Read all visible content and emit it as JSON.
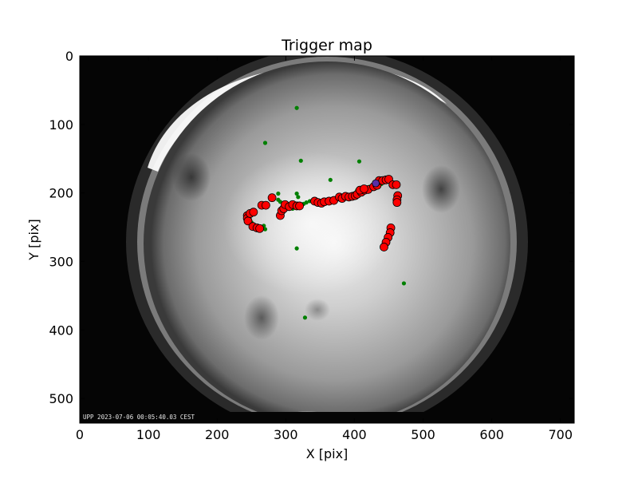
{
  "chart_data": {
    "type": "scatter",
    "title": "Trigger map",
    "xlabel": "X [pix]",
    "ylabel": "Y [pix]",
    "xlim": [
      0,
      720
    ],
    "ylim": [
      536,
      0
    ],
    "xticks": [
      0,
      100,
      200,
      300,
      400,
      500,
      600,
      700
    ],
    "yticks": [
      0,
      100,
      200,
      300,
      400,
      500
    ],
    "grid": false,
    "background": "grayscale all-sky camera frame",
    "camera_timestamp": "UPP 2023-07-06 00:05:40.03 CEST",
    "series": [
      {
        "role": "scattered trigger points",
        "color": "#008000",
        "points": [
          [
            316,
            76
          ],
          [
            270,
            127
          ],
          [
            322,
            153
          ],
          [
            407,
            154
          ],
          [
            365,
            181
          ],
          [
            289,
            201
          ],
          [
            316,
            201
          ],
          [
            318,
            206
          ],
          [
            289,
            210
          ],
          [
            292,
            213
          ],
          [
            326,
            216
          ],
          [
            330,
            214
          ],
          [
            335,
            212
          ],
          [
            404,
            196
          ],
          [
            422,
            191
          ],
          [
            439,
            187
          ],
          [
            451,
            183
          ],
          [
            456,
            186
          ],
          [
            466,
            205
          ],
          [
            462,
            210
          ],
          [
            310,
            223
          ],
          [
            315,
            222
          ],
          [
            268,
            248
          ],
          [
            270,
            253
          ],
          [
            250,
            243
          ],
          [
            316,
            281
          ],
          [
            328,
            382
          ],
          [
            472,
            332
          ]
        ]
      },
      {
        "role": "track points",
        "color": "#ff0000",
        "points": [
          [
            244,
            233
          ],
          [
            244,
            237
          ],
          [
            245,
            241
          ],
          [
            248,
            230
          ],
          [
            253,
            228
          ],
          [
            265,
            218
          ],
          [
            271,
            218
          ],
          [
            280,
            207
          ],
          [
            292,
            233
          ],
          [
            294,
            226
          ],
          [
            297,
            223
          ],
          [
            299,
            217
          ],
          [
            305,
            220
          ],
          [
            310,
            217
          ],
          [
            316,
            219
          ],
          [
            320,
            219
          ],
          [
            342,
            212
          ],
          [
            347,
            214
          ],
          [
            352,
            215
          ],
          [
            356,
            213
          ],
          [
            363,
            212
          ],
          [
            370,
            211
          ],
          [
            378,
            206
          ],
          [
            382,
            208
          ],
          [
            387,
            205
          ],
          [
            392,
            206
          ],
          [
            397,
            205
          ],
          [
            401,
            204
          ],
          [
            404,
            202
          ],
          [
            410,
            199
          ],
          [
            415,
            196
          ],
          [
            420,
            195
          ],
          [
            428,
            191
          ],
          [
            433,
            189
          ],
          [
            436,
            182
          ],
          [
            441,
            182
          ],
          [
            446,
            181
          ],
          [
            450,
            180
          ],
          [
            456,
            188
          ],
          [
            461,
            188
          ],
          [
            463,
            204
          ],
          [
            462,
            210
          ],
          [
            462,
            214
          ],
          [
            453,
            251
          ],
          [
            452,
            258
          ],
          [
            449,
            265
          ],
          [
            446,
            272
          ],
          [
            443,
            279
          ],
          [
            252,
            249
          ],
          [
            258,
            251
          ],
          [
            262,
            252
          ],
          [
            408,
            196
          ],
          [
            414,
            194
          ]
        ]
      },
      {
        "role": "highlighted point",
        "color": "#5a2ea6",
        "points": [
          [
            431,
            186
          ]
        ]
      }
    ]
  }
}
